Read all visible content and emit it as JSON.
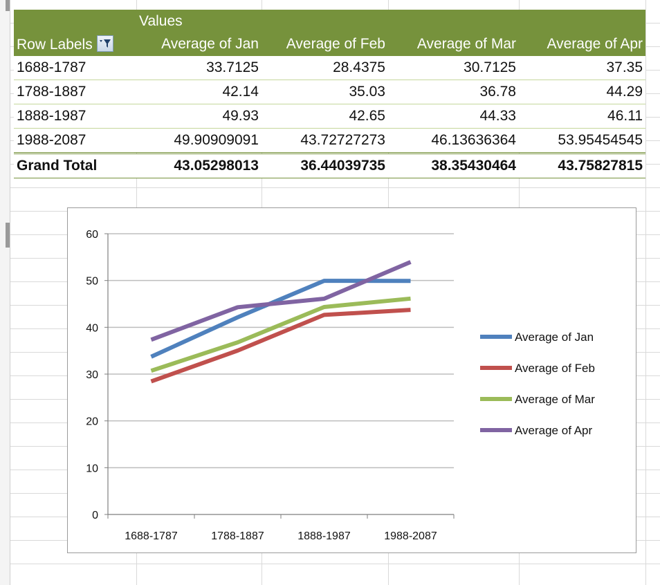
{
  "pivot": {
    "values_caption": "Values",
    "row_labels_header": "Row Labels",
    "columns": [
      "Average of Jan",
      "Average of Feb",
      "Average of Mar",
      "Average of Apr"
    ],
    "rows": [
      {
        "label": "1688-1787",
        "values": [
          "33.7125",
          "28.4375",
          "30.7125",
          "37.35"
        ]
      },
      {
        "label": "1788-1887",
        "values": [
          "42.14",
          "35.03",
          "36.78",
          "44.29"
        ]
      },
      {
        "label": "1888-1987",
        "values": [
          "49.93",
          "42.65",
          "44.33",
          "46.11"
        ]
      },
      {
        "label": "1988-2087",
        "values": [
          "49.90909091",
          "43.72727273",
          "46.13636364",
          "53.95454545"
        ]
      }
    ],
    "total": {
      "label": "Grand Total",
      "values": [
        "43.05298013",
        "36.44039735",
        "38.35430464",
        "43.75827815"
      ]
    }
  },
  "chart_data": {
    "type": "line",
    "categories": [
      "1688-1787",
      "1788-1887",
      "1888-1987",
      "1988-2087"
    ],
    "series": [
      {
        "name": "Average of Jan",
        "color": "#4f81bd",
        "values": [
          33.7125,
          42.14,
          49.93,
          49.90909091
        ]
      },
      {
        "name": "Average of Feb",
        "color": "#c0504d",
        "values": [
          28.4375,
          35.03,
          42.65,
          43.72727273
        ]
      },
      {
        "name": "Average of Mar",
        "color": "#9bbb59",
        "values": [
          30.7125,
          36.78,
          44.33,
          46.13636364
        ]
      },
      {
        "name": "Average of Apr",
        "color": "#8064a2",
        "values": [
          37.35,
          44.29,
          46.11,
          53.95454545
        ]
      }
    ],
    "yticks": [
      "0",
      "10",
      "20",
      "30",
      "40",
      "50",
      "60"
    ],
    "ylim": [
      0,
      60
    ],
    "grid": true,
    "legend": "right"
  },
  "colors": {
    "pivot_header": "#76923c",
    "grid": "#d9d9d9"
  }
}
